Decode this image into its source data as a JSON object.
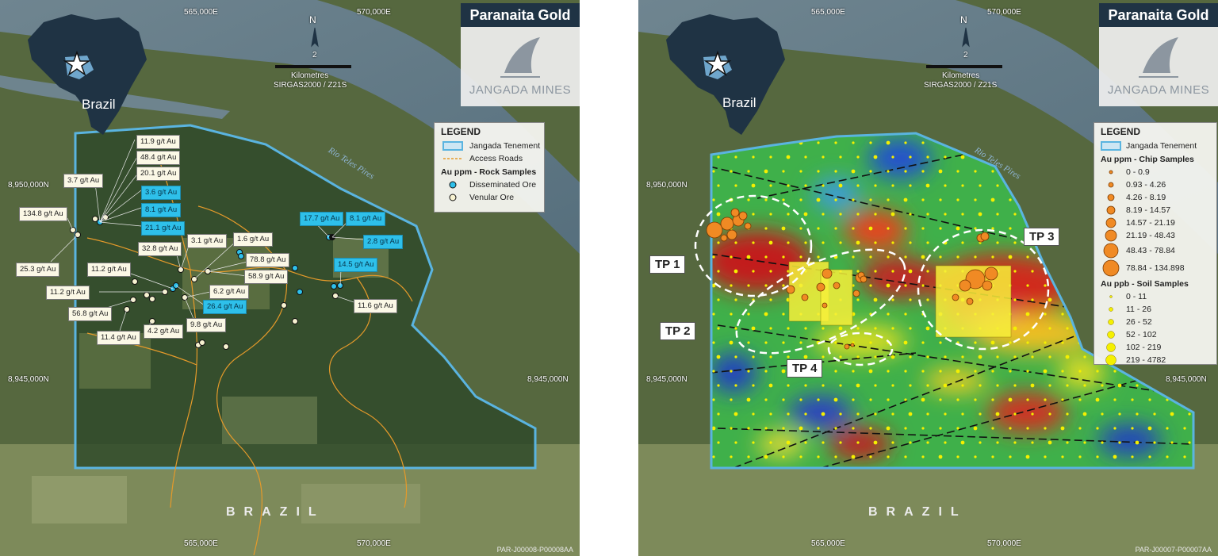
{
  "left_map": {
    "title": "Paranaita Gold",
    "company": "JANGADA MINES",
    "inset_label": "Brazil",
    "north_letter": "N",
    "scale_number": "2",
    "scale_units": "Kilometres",
    "scale_crs": "SIRGAS2000 / Z21S",
    "coord_top_1": "565,000E",
    "coord_top_2": "570,000E",
    "coord_bottom_1": "565,000E",
    "coord_bottom_2": "570,000E",
    "coord_left_1": "8,950,000N",
    "coord_left_2": "8,945,000N",
    "coord_right_1": "8,945,000N",
    "country_label": "BRAZIL",
    "river_label": "Rio Teles Pires",
    "ref_code": "PAR-J00008-P00008AA",
    "legend": {
      "title": "LEGEND",
      "tenement": "Jangada Tenement",
      "roads": "Access Roads",
      "sub_title": "Au ppm - Rock Samples",
      "disseminated": "Disseminated Ore",
      "venular": "Venular Ore"
    },
    "labels": [
      {
        "text": "11.9 g/t Au",
        "type": "v"
      },
      {
        "text": "48.4 g/t Au",
        "type": "v"
      },
      {
        "text": "20.1 g/t Au",
        "type": "v"
      },
      {
        "text": "3.7 g/t Au",
        "type": "v"
      },
      {
        "text": "3.6 g/t Au",
        "type": "d"
      },
      {
        "text": "8.1 g/t Au",
        "type": "d"
      },
      {
        "text": "134.8 g/t Au",
        "type": "v"
      },
      {
        "text": "21.1 g/t Au",
        "type": "d"
      },
      {
        "text": "17.7 g/t Au",
        "type": "d"
      },
      {
        "text": "8.1 g/t Au",
        "type": "d"
      },
      {
        "text": "2.8 g/t Au",
        "type": "d"
      },
      {
        "text": "3.1 g/t Au",
        "type": "v"
      },
      {
        "text": "1.6 g/t Au",
        "type": "v"
      },
      {
        "text": "32.8 g/t Au",
        "type": "v"
      },
      {
        "text": "78.8 g/t Au",
        "type": "v"
      },
      {
        "text": "25.3 g/t Au",
        "type": "v"
      },
      {
        "text": "11.2 g/t Au",
        "type": "v"
      },
      {
        "text": "58.9 g/t Au",
        "type": "v"
      },
      {
        "text": "14.5 g/t Au",
        "type": "d"
      },
      {
        "text": "11.2 g/t Au",
        "type": "v"
      },
      {
        "text": "6.2 g/t Au",
        "type": "v"
      },
      {
        "text": "26.4 g/t Au",
        "type": "d"
      },
      {
        "text": "56.8 g/t Au",
        "type": "v"
      },
      {
        "text": "11.6 g/t Au",
        "type": "v"
      },
      {
        "text": "9.8 g/t Au",
        "type": "v"
      },
      {
        "text": "4.2 g/t Au",
        "type": "v"
      },
      {
        "text": "11.4 g/t Au",
        "type": "v"
      }
    ]
  },
  "right_map": {
    "title": "Paranaita Gold",
    "company": "JANGADA MINES",
    "inset_label": "Brazil",
    "north_letter": "N",
    "scale_number": "2",
    "scale_units": "Kilometres",
    "scale_crs": "SIRGAS2000 / Z21S",
    "coord_top_1": "565,000E",
    "coord_top_2": "570,000E",
    "coord_bottom_1": "565,000E",
    "coord_bottom_2": "570,000E",
    "coord_left_1": "8,950,000N",
    "coord_left_2": "8,945,000N",
    "coord_right_1": "8,945,000N",
    "country_label": "BRAZIL",
    "river_label": "Rio Teles Pires",
    "ref_code": "PAR-J00007-P00007AA",
    "targets": [
      "TP 1",
      "TP 2",
      "TP 3",
      "TP 4"
    ],
    "legend": {
      "title": "LEGEND",
      "tenement": "Jangada Tenement",
      "chip_title": "Au ppm - Chip Samples",
      "chip_classes": [
        "0 - 0.9",
        "0.93 - 4.26",
        "4.26 - 8.19",
        "8.19 - 14.57",
        "14.57 - 21.19",
        "21.19 - 48.43",
        "48.43 - 78.84",
        "78.84 - 134.898"
      ],
      "soil_title": "Au ppb - Soil Samples",
      "soil_classes": [
        "0 - 11",
        "11 - 26",
        "26 - 52",
        "52 - 102",
        "102 - 219",
        "219 - 4782"
      ]
    }
  },
  "colors": {
    "header_bg": "#1f3344",
    "tenement": "#5ab4e0",
    "roads": "#e59a2a",
    "disseminated": "#2ec0ea",
    "venular": "#f7f2d0",
    "chip": "#f08a24",
    "soil": "#f5f000"
  }
}
